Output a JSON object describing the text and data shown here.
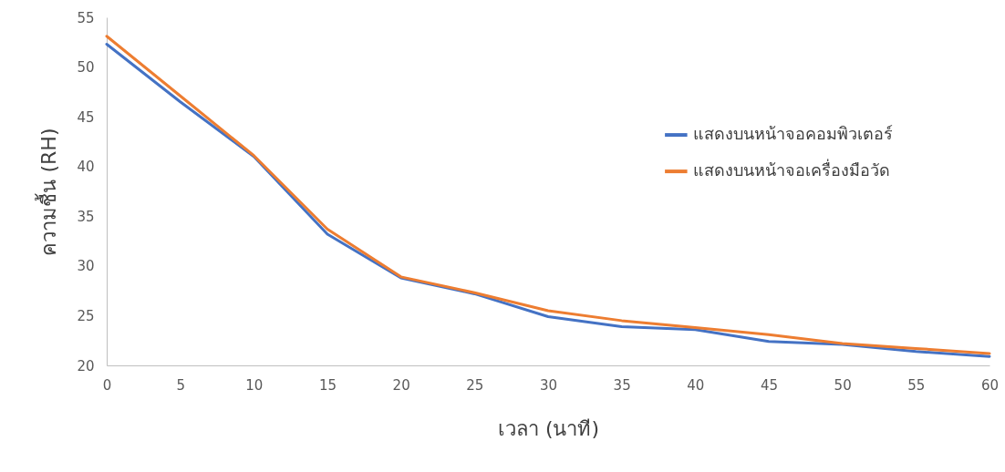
{
  "chart_data": {
    "type": "line",
    "xlabel": "เวลา (นาที)",
    "ylabel": "ความชื้น (RH)",
    "categories": [
      "0",
      "5",
      "10",
      "15",
      "20",
      "25",
      "30",
      "35",
      "40",
      "45",
      "50",
      "55",
      "60"
    ],
    "series": [
      {
        "name": "แสดงบนหน้าจอคอมพิวเตอร์",
        "color": "#4472c4",
        "values": [
          52.3,
          46.5,
          41,
          33.2,
          28.8,
          27.2,
          24.9,
          23.9,
          23.6,
          22.4,
          22.1,
          21.4,
          20.9
        ]
      },
      {
        "name": "แสดงบนหน้าจอเครื่องมือวัด",
        "color": "#ed7d31",
        "values": [
          53.1,
          47.1,
          41.1,
          33.7,
          28.9,
          27.3,
          25.5,
          24.5,
          23.8,
          23.1,
          22.2,
          21.7,
          21.2
        ]
      }
    ],
    "ylim": [
      20,
      55
    ],
    "yticks": [
      20,
      25,
      30,
      35,
      40,
      45,
      50,
      55
    ],
    "grid": false,
    "legend": "right",
    "marker": "none",
    "line_style": "solid"
  }
}
